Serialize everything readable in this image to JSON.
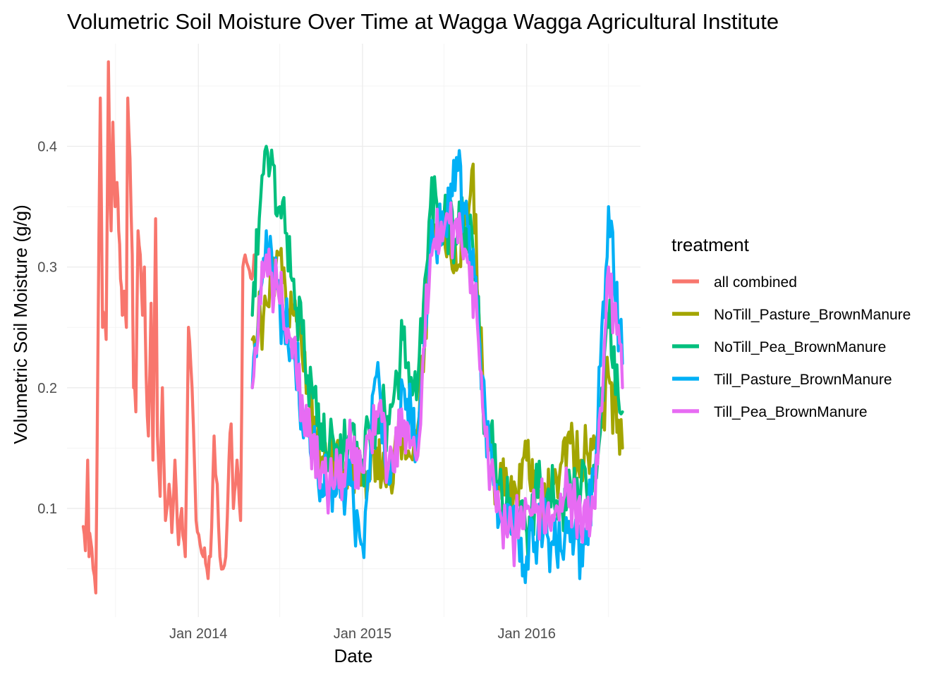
{
  "chart_data": {
    "type": "line",
    "title": "Volumetric Soil Moisture Over Time at Wagga Wagga Agricultural Institute",
    "xlabel": "Date",
    "ylabel": "Volumetric Soil Moisture (g/g)",
    "x_ticks": [
      "Jan 2014",
      "Jan 2015",
      "Jan 2016"
    ],
    "y_ticks": [
      "0.1",
      "0.2",
      "0.3",
      "0.4"
    ],
    "xlim": [
      "2013-03-15",
      "2016-09-10"
    ],
    "ylim": [
      0.01,
      0.485
    ],
    "grid": true,
    "legend": {
      "title": "treatment",
      "position": "right"
    },
    "series": [
      {
        "name": "all combined",
        "color": "#F8766D",
        "x": [
          "2013-04-20",
          "2013-04-25",
          "2013-04-30",
          "2013-05-03",
          "2013-05-06",
          "2013-05-12",
          "2013-05-18",
          "2013-05-22",
          "2013-05-28",
          "2013-06-02",
          "2013-06-05",
          "2013-06-10",
          "2013-06-15",
          "2013-06-18",
          "2013-06-21",
          "2013-06-25",
          "2013-06-30",
          "2013-07-04",
          "2013-07-08",
          "2013-07-12",
          "2013-07-16",
          "2013-07-20",
          "2013-07-25",
          "2013-07-28",
          "2013-08-02",
          "2013-08-07",
          "2013-08-10",
          "2013-08-15",
          "2013-08-20",
          "2013-08-25",
          "2013-08-30",
          "2013-09-03",
          "2013-09-07",
          "2013-09-12",
          "2013-09-18",
          "2013-09-22",
          "2013-09-28",
          "2013-10-02",
          "2013-10-08",
          "2013-10-13",
          "2013-10-20",
          "2013-10-28",
          "2013-11-03",
          "2013-11-10",
          "2013-11-18",
          "2013-11-25",
          "2013-12-03",
          "2013-12-10",
          "2013-12-18",
          "2013-12-27",
          "2014-01-05",
          "2014-01-12",
          "2014-01-20",
          "2014-01-28",
          "2014-02-05",
          "2014-02-12",
          "2014-02-18",
          "2014-02-25",
          "2014-03-03",
          "2014-03-10",
          "2014-03-15",
          "2014-03-20",
          "2014-03-28",
          "2014-04-05",
          "2014-04-10",
          "2014-04-15",
          "2014-04-22",
          "2014-04-30",
          "2014-05-05"
        ],
        "y": [
          0.085,
          0.065,
          0.14,
          0.06,
          0.075,
          0.05,
          0.03,
          0.2,
          0.44,
          0.25,
          0.26,
          0.24,
          0.47,
          0.38,
          0.33,
          0.42,
          0.35,
          0.37,
          0.33,
          0.29,
          0.26,
          0.28,
          0.25,
          0.44,
          0.39,
          0.31,
          0.2,
          0.18,
          0.33,
          0.31,
          0.26,
          0.3,
          0.21,
          0.16,
          0.27,
          0.14,
          0.34,
          0.16,
          0.11,
          0.2,
          0.09,
          0.12,
          0.08,
          0.14,
          0.07,
          0.1,
          0.06,
          0.25,
          0.2,
          0.09,
          0.07,
          0.06,
          0.05,
          0.06,
          0.16,
          0.12,
          0.06,
          0.05,
          0.06,
          0.14,
          0.17,
          0.1,
          0.14,
          0.09,
          0.3,
          0.31,
          0.3,
          0.29,
          0.31
        ]
      },
      {
        "name": "NoTill_Pasture_BrownManure",
        "color": "#A3A500",
        "x": [
          "2014-05-01",
          "2014-06-01",
          "2014-07-01",
          "2014-08-01",
          "2014-09-01",
          "2014-10-01",
          "2014-11-01",
          "2014-12-01",
          "2015-01-01",
          "2015-01-15",
          "2015-02-01",
          "2015-03-01",
          "2015-04-01",
          "2015-05-01",
          "2015-06-01",
          "2015-07-01",
          "2015-08-01",
          "2015-09-01",
          "2015-10-01",
          "2015-11-01",
          "2015-12-01",
          "2016-01-01",
          "2016-02-01",
          "2016-03-01",
          "2016-04-01",
          "2016-05-01",
          "2016-06-01",
          "2016-07-01",
          "2016-08-01"
        ],
        "y": [
          0.24,
          0.27,
          0.31,
          0.26,
          0.2,
          0.14,
          0.15,
          0.13,
          0.13,
          0.13,
          0.15,
          0.12,
          0.16,
          0.15,
          0.32,
          0.33,
          0.3,
          0.38,
          0.16,
          0.12,
          0.1,
          0.14,
          0.11,
          0.12,
          0.16,
          0.14,
          0.15,
          0.21,
          0.15
        ]
      },
      {
        "name": "NoTill_Pea_BrownManure",
        "color": "#00BF7D",
        "x": [
          "2014-05-01",
          "2014-06-01",
          "2014-07-01",
          "2014-08-01",
          "2014-09-01",
          "2014-10-01",
          "2014-11-01",
          "2014-12-01",
          "2015-01-01",
          "2015-02-01",
          "2015-03-01",
          "2015-04-01",
          "2015-05-01",
          "2015-06-01",
          "2015-07-01",
          "2015-08-01",
          "2015-09-01",
          "2015-10-01",
          "2015-11-01",
          "2015-12-01",
          "2016-01-01",
          "2016-02-01",
          "2016-03-01",
          "2016-04-01",
          "2016-05-01",
          "2016-06-01",
          "2016-07-01",
          "2016-08-01"
        ],
        "y": [
          0.26,
          0.4,
          0.35,
          0.29,
          0.21,
          0.17,
          0.14,
          0.16,
          0.14,
          0.18,
          0.17,
          0.24,
          0.19,
          0.35,
          0.34,
          0.33,
          0.33,
          0.17,
          0.12,
          0.1,
          0.08,
          0.12,
          0.11,
          0.11,
          0.12,
          0.13,
          0.25,
          0.18
        ]
      },
      {
        "name": "Till_Pasture_BrownManure",
        "color": "#00B0F6",
        "x": [
          "2014-05-01",
          "2014-06-01",
          "2014-07-01",
          "2014-08-01",
          "2014-09-01",
          "2014-10-01",
          "2014-11-01",
          "2014-12-01",
          "2015-01-01",
          "2015-02-01",
          "2015-03-01",
          "2015-04-01",
          "2015-05-01",
          "2015-06-01",
          "2015-07-01",
          "2015-08-01",
          "2015-09-01",
          "2015-10-01",
          "2015-11-01",
          "2015-12-01",
          "2016-01-01",
          "2016-02-01",
          "2016-03-01",
          "2016-04-01",
          "2016-05-01",
          "2016-06-01",
          "2016-07-01",
          "2016-08-01"
        ],
        "y": [
          0.2,
          0.33,
          0.27,
          0.23,
          0.16,
          0.12,
          0.11,
          0.12,
          0.07,
          0.21,
          0.12,
          0.2,
          0.16,
          0.31,
          0.33,
          0.38,
          0.31,
          0.18,
          0.09,
          0.1,
          0.06,
          0.09,
          0.07,
          0.08,
          0.07,
          0.13,
          0.35,
          0.22
        ]
      },
      {
        "name": "Till_Pea_BrownManure",
        "color": "#E76BF3",
        "x": [
          "2014-05-01",
          "2014-06-01",
          "2014-07-01",
          "2014-08-01",
          "2014-09-01",
          "2014-10-01",
          "2014-11-01",
          "2014-12-01",
          "2015-01-01",
          "2015-02-01",
          "2015-03-01",
          "2015-04-01",
          "2015-05-01",
          "2015-06-01",
          "2015-07-01",
          "2015-08-01",
          "2015-09-01",
          "2015-10-01",
          "2015-11-01",
          "2015-12-01",
          "2016-01-01",
          "2016-02-01",
          "2016-03-01",
          "2016-04-01",
          "2016-05-01",
          "2016-06-01",
          "2016-07-01",
          "2016-08-01"
        ],
        "y": [
          0.2,
          0.31,
          0.27,
          0.24,
          0.16,
          0.13,
          0.12,
          0.15,
          0.13,
          0.18,
          0.14,
          0.16,
          0.14,
          0.31,
          0.33,
          0.32,
          0.3,
          0.16,
          0.1,
          0.08,
          0.1,
          0.1,
          0.09,
          0.12,
          0.08,
          0.1,
          0.3,
          0.2
        ]
      }
    ]
  }
}
